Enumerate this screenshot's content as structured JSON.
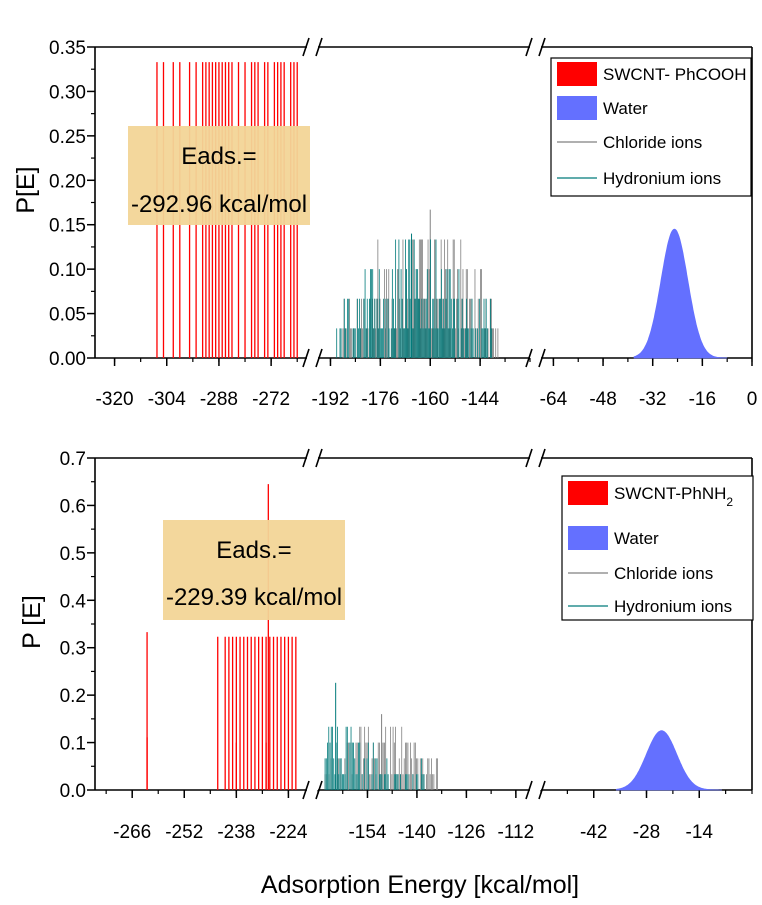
{
  "figure": {
    "xlabel": "Adsorption Energy [kcal/mol]",
    "colors": {
      "adsorbate": "#ff0000",
      "water": "#6470ff",
      "chloride": "#808080",
      "hydronium": "#007a7a",
      "annotation_box": "#f2d597",
      "axis": "#000000"
    }
  },
  "chart_data": [
    {
      "type": "histogram",
      "ylabel": "P[E]",
      "ylim": [
        0,
        0.35
      ],
      "yticks": [
        "0.00",
        "0.05",
        "0.10",
        "0.15",
        "0.20",
        "0.25",
        "0.30",
        "0.35"
      ],
      "x_axis_break": "broken axis in three segments",
      "segments": [
        {
          "xlim": [
            -326,
            -261
          ],
          "ticks": [
            "-320",
            "-304",
            "-288",
            "-272"
          ]
        },
        {
          "xlim": [
            -196,
            -128
          ],
          "ticks": [
            "-192",
            "-176",
            "-160",
            "-144"
          ]
        },
        {
          "xlim": [
            -68,
            0
          ],
          "ticks": [
            "-64",
            "-48",
            "-32",
            "-16",
            "0"
          ]
        }
      ],
      "annotation": {
        "line1": "Eads.=",
        "line2": "-292.96 kcal/mol"
      },
      "legend": {
        "position": "top-right",
        "entries": [
          {
            "label": "SWCNT- PhCOOH",
            "marker": "red-patch-icon"
          },
          {
            "label": "Water",
            "marker": "blue-patch-icon"
          },
          {
            "label": "Chloride ions",
            "marker": "gray-line-icon"
          },
          {
            "label": "Hydronium ions",
            "marker": "teal-line-icon"
          }
        ]
      },
      "series": [
        {
          "name": "SWCNT- PhCOOH",
          "kind": "bars",
          "x_range": [
            -307,
            -264
          ],
          "bar_count": 30,
          "x": [
            -307,
            -305,
            -302,
            -300,
            -297,
            -295,
            -293,
            -292,
            -291,
            -290,
            -289,
            -288,
            -287,
            -286,
            -285,
            -284,
            -282,
            -280,
            -278,
            -277,
            -276,
            -274,
            -273,
            -271,
            -270,
            -269,
            -268,
            -266,
            -265,
            -264
          ],
          "values": [
            0.333,
            0.333,
            0.333,
            0.333,
            0.333,
            0.333,
            0.333,
            0.333,
            0.333,
            0.333,
            0.333,
            0.333,
            0.333,
            0.333,
            0.333,
            0.333,
            0.333,
            0.333,
            0.333,
            0.333,
            0.333,
            0.333,
            0.333,
            0.333,
            0.333,
            0.333,
            0.333,
            0.333,
            0.333,
            0.333
          ]
        },
        {
          "name": "Water",
          "kind": "filled-distribution",
          "peak_x": -25,
          "peak_y": 0.145,
          "x_range": [
            -38,
            -8
          ]
        },
        {
          "name": "Chloride ions",
          "kind": "spikes",
          "x_range": [
            -188,
            -138
          ],
          "peak_x": -160,
          "peak_y": 0.167
        },
        {
          "name": "Hydronium ions",
          "kind": "spikes",
          "x_range": [
            -190,
            -140
          ],
          "peak_x": -166,
          "peak_y": 0.14
        }
      ]
    },
    {
      "type": "histogram",
      "ylabel": "P [E]",
      "ylim": [
        0,
        0.7
      ],
      "yticks": [
        "0.0",
        "0.1",
        "0.2",
        "0.3",
        "0.4",
        "0.5",
        "0.6",
        "0.7"
      ],
      "x_axis_break": "broken axis in three segments",
      "segments": [
        {
          "xlim": [
            -276,
            -219
          ],
          "ticks": [
            "-266",
            "-252",
            "-238",
            "-224"
          ]
        },
        {
          "xlim": [
            -168,
            -108
          ],
          "ticks": [
            "-154",
            "-140",
            "-126",
            "-112"
          ]
        },
        {
          "xlim": [
            -56,
            0
          ],
          "ticks": [
            "-42",
            "-28",
            "-14"
          ]
        }
      ],
      "annotation": {
        "line1": "Eads.=",
        "line2": "-229.39 kcal/mol"
      },
      "legend": {
        "position": "top-right",
        "entries": [
          {
            "label": "SWCNT-PhNH",
            "subscript": "2",
            "marker": "red-patch-icon"
          },
          {
            "label": "Water",
            "marker": "blue-patch-icon"
          },
          {
            "label": "Chloride ions",
            "marker": "gray-line-icon"
          },
          {
            "label": "Hydronium ions",
            "marker": "teal-line-icon"
          }
        ]
      },
      "series": [
        {
          "name": "SWCNT-PhNH2",
          "kind": "bars",
          "x_range": [
            -262,
            -222
          ],
          "bar_count": 26,
          "x": [
            -262,
            -262,
            -243,
            -241,
            -240,
            -239,
            -238,
            -237,
            -236,
            -235,
            -234,
            -233,
            -232,
            -231,
            -230,
            -229.4,
            -229,
            -228,
            -227,
            -226,
            -225,
            -224,
            -223,
            -222,
            -238,
            -230
          ],
          "values": [
            0.333,
            0.111,
            0.323,
            0.323,
            0.323,
            0.323,
            0.323,
            0.323,
            0.323,
            0.323,
            0.323,
            0.323,
            0.323,
            0.323,
            0.323,
            0.645,
            0.323,
            0.323,
            0.323,
            0.323,
            0.323,
            0.323,
            0.323,
            0.323,
            0.1,
            0.1
          ]
        },
        {
          "name": "Water",
          "kind": "filled-distribution",
          "peak_x": -24,
          "peak_y": 0.125,
          "x_range": [
            -36,
            -8
          ]
        },
        {
          "name": "Chloride ions",
          "kind": "spikes",
          "x_range": [
            -166,
            -134
          ],
          "peak_x": -150,
          "peak_y": 0.16
        },
        {
          "name": "Hydronium ions",
          "kind": "spikes",
          "x_range": [
            -166,
            -138
          ],
          "peak_x": -163,
          "peak_y": 0.226
        }
      ]
    }
  ]
}
